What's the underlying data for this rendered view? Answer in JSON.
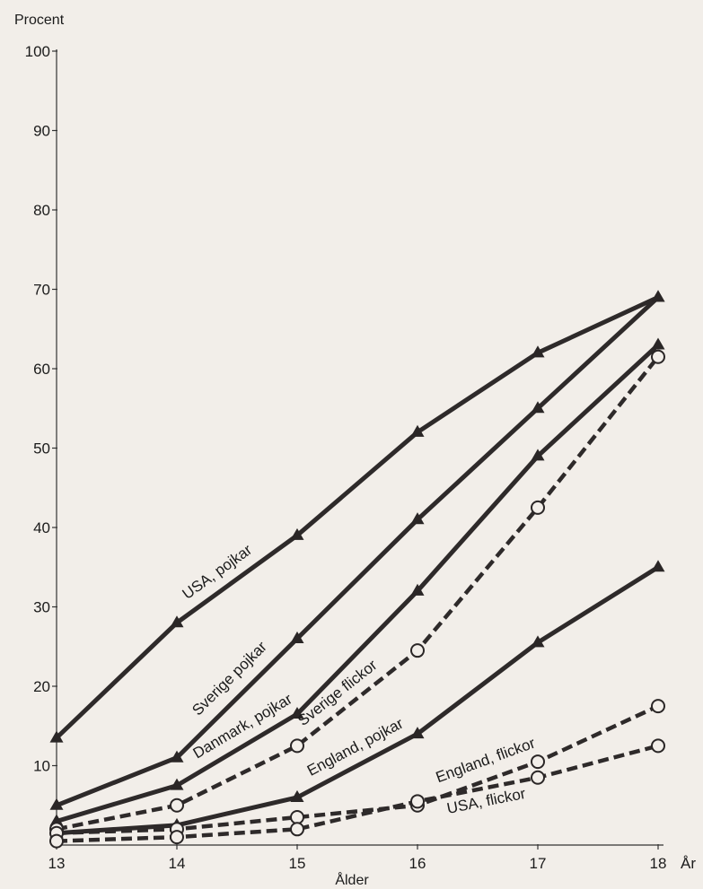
{
  "chart_data": {
    "type": "line",
    "ylabel": "Procent",
    "xlabel": "Ålder",
    "x_unit_label": "År",
    "x": [
      13,
      14,
      15,
      16,
      17,
      18
    ],
    "x_tick_labels": [
      "13",
      "14",
      "15",
      "16",
      "17",
      "18"
    ],
    "y_tick_labels": [
      "10",
      "20",
      "30",
      "40",
      "50",
      "60",
      "70",
      "80",
      "90",
      "100"
    ],
    "xlim": [
      13,
      18
    ],
    "ylim": [
      0,
      100
    ],
    "grid": false,
    "legend": "none",
    "series": [
      {
        "name": "USA, pojkar",
        "marker": "triangle",
        "style": "solid",
        "values": [
          13.5,
          28,
          39,
          52,
          62,
          69
        ]
      },
      {
        "name": "Sverige pojkar",
        "marker": "triangle",
        "style": "solid",
        "values": [
          5,
          11,
          26,
          41,
          55,
          69
        ]
      },
      {
        "name": "Danmark, pojkar",
        "marker": "triangle",
        "style": "solid",
        "values": [
          3,
          7.5,
          16.5,
          32,
          49,
          63
        ]
      },
      {
        "name": "Sverige flickor",
        "marker": "circle",
        "style": "dashed",
        "values": [
          2,
          5,
          12.5,
          24.5,
          42.5,
          61.5
        ]
      },
      {
        "name": "England, pojkar",
        "marker": "triangle",
        "style": "solid",
        "values": [
          1.5,
          2.5,
          6,
          14,
          25.5,
          35
        ]
      },
      {
        "name": "England, flickor",
        "marker": "circle",
        "style": "dashed",
        "values": [
          1.5,
          2,
          3.5,
          5,
          10.5,
          17.5
        ]
      },
      {
        "name": "USA, flickor",
        "marker": "circle",
        "style": "dashed",
        "values": [
          0.5,
          1,
          2,
          5.5,
          8.5,
          12.5
        ]
      }
    ],
    "colors": {
      "line": "#2e2a2a",
      "marker": "#2a2626",
      "background": "#f2eee9"
    }
  }
}
